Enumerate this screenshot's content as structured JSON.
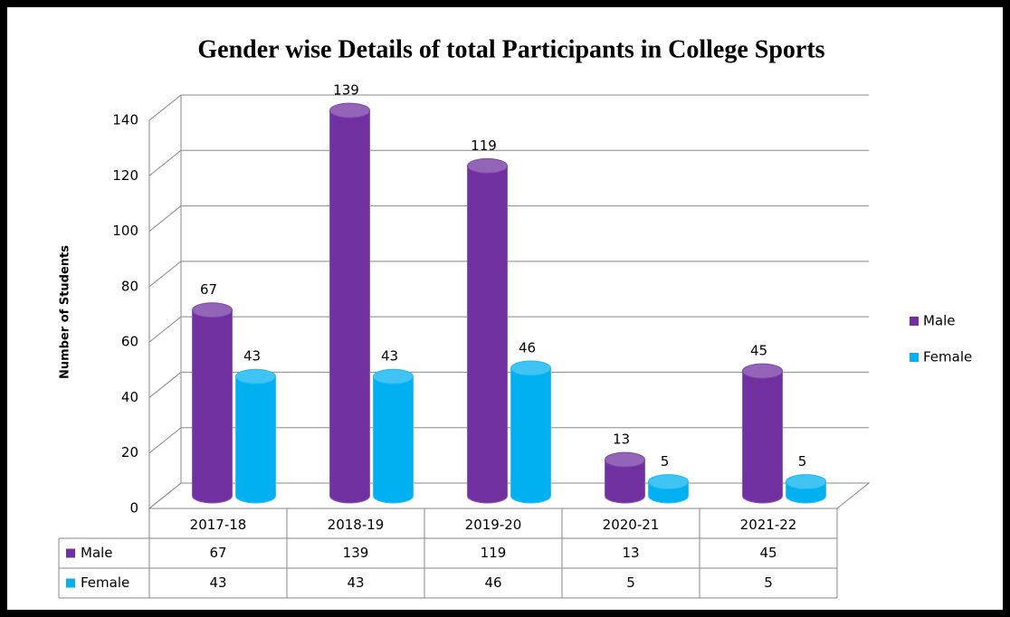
{
  "chart_data": {
    "type": "bar3d",
    "title": "Gender wise Details of total Participants in College Sports",
    "y_label": "Number of Students",
    "categories": [
      "2017-18",
      "2018-19",
      "2019-20",
      "2020-21",
      "2021-22"
    ],
    "series": [
      {
        "name": "Male",
        "color": "#7030a0",
        "values": [
          67,
          139,
          119,
          13,
          45
        ]
      },
      {
        "name": "Female",
        "color": "#00b0f0",
        "values": [
          43,
          43,
          46,
          5,
          5
        ]
      }
    ],
    "ylim": [
      0,
      140
    ],
    "yticks": [
      0,
      20,
      40,
      60,
      80,
      100,
      120,
      140
    ],
    "grid": true,
    "legend": "right",
    "data_table": true
  }
}
